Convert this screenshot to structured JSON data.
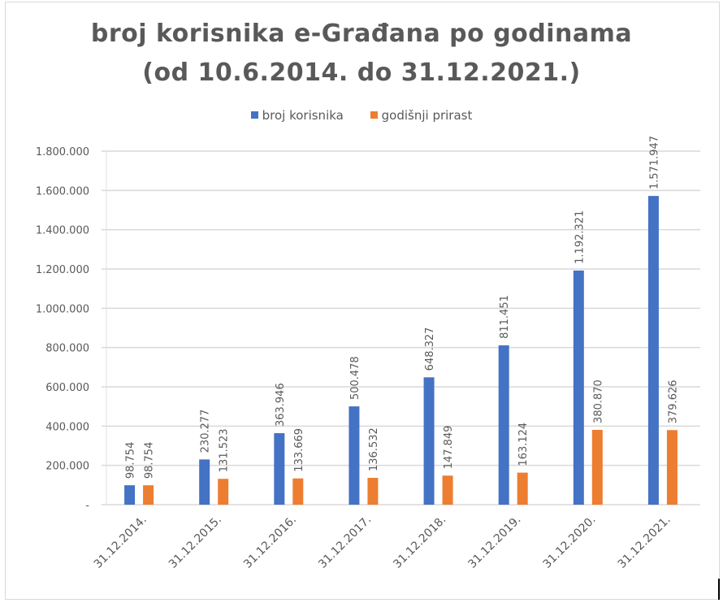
{
  "chart_data": {
    "type": "bar",
    "title": "broj korisnika e-Građana po godinama (od 10.6.2014. do 31.12.2021.)",
    "title_lines": [
      "broj korisnika e-Građana po godinama",
      "(od 10.6.2014. do 31.12.2021.)"
    ],
    "xlabel": "",
    "ylabel": "",
    "ylim": [
      0,
      1800000
    ],
    "yticks": [
      0,
      200000,
      400000,
      600000,
      800000,
      1000000,
      1200000,
      1400000,
      1600000,
      1800000
    ],
    "ytick_labels": [
      "-",
      "200.000",
      "400.000",
      "600.000",
      "800.000",
      "1.000.000",
      "1.200.000",
      "1.400.000",
      "1.600.000",
      "1.800.000"
    ],
    "grid": true,
    "legend_position": "top",
    "categories": [
      "31.12.2014.",
      "31.12.2015.",
      "31.12.2016.",
      "31.12.2017.",
      "31.12.2018.",
      "31.12.2019.",
      "31.12.2020.",
      "31.12.2021."
    ],
    "series": [
      {
        "name": "broj korisnika",
        "color": "#4472C4",
        "values": [
          98754,
          230277,
          363946,
          500478,
          648327,
          811451,
          1192321,
          1571947
        ],
        "labels": [
          "98.754",
          "230.277",
          "363.946",
          "500.478",
          "648.327",
          "811.451",
          "1.192.321",
          "1.571.947"
        ]
      },
      {
        "name": "godišnji prirast",
        "color": "#ED7D31",
        "values": [
          98754,
          131523,
          133669,
          136532,
          147849,
          163124,
          380870,
          379626
        ],
        "labels": [
          "98.754",
          "131.523",
          "133.669",
          "136.532",
          "147.849",
          "163.124",
          "380.870",
          "379.626"
        ]
      }
    ]
  },
  "colors": {
    "text": "#595959",
    "grid": "#d9d9d9",
    "series_1": "#4472C4",
    "series_2": "#ED7D31"
  }
}
